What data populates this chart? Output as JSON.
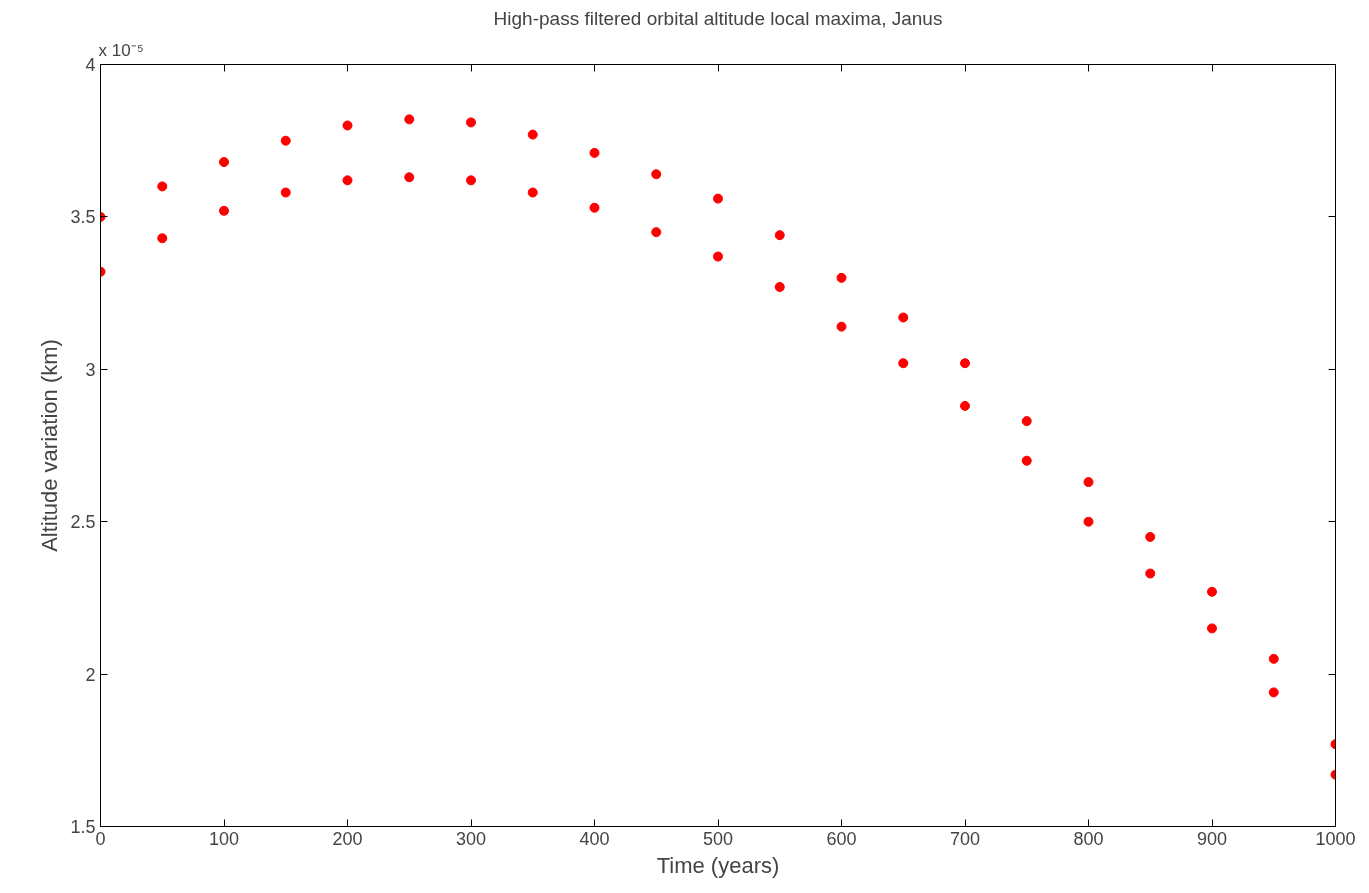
{
  "chart_data": {
    "type": "scatter",
    "title": "High-pass filtered orbital altitude local maxima, Janus",
    "xlabel": "Time (years)",
    "ylabel": "Altitude variation (km)",
    "annotations": [
      "x 10⁻⁵"
    ],
    "marker": "circle",
    "grid": false,
    "xlim": [
      0,
      1000
    ],
    "xticks": [
      0,
      100,
      200,
      300,
      400,
      500,
      600,
      700,
      800,
      900,
      1000
    ],
    "ylim": [
      1.5,
      4
    ],
    "yticks": [
      1.5,
      2,
      2.5,
      3,
      3.5,
      4
    ],
    "series": [
      {
        "color": "#ff0000",
        "x": [
          0,
          0,
          50,
          50,
          100,
          100,
          150,
          150,
          200,
          200,
          250,
          250,
          300,
          300,
          350,
          350,
          400,
          400,
          450,
          450,
          500,
          500,
          550,
          550,
          600,
          600,
          650,
          650,
          700,
          700,
          750,
          750,
          800,
          800,
          850,
          850,
          900,
          900,
          950,
          950,
          1000,
          1000
        ],
        "values": [
          3.5,
          3.32,
          3.6,
          3.43,
          3.68,
          3.52,
          3.75,
          3.58,
          3.8,
          3.62,
          3.82,
          3.63,
          3.81,
          3.62,
          3.77,
          3.58,
          3.71,
          3.53,
          3.64,
          3.45,
          3.56,
          3.37,
          3.44,
          3.27,
          3.3,
          3.14,
          3.17,
          3.02,
          3.02,
          2.88,
          2.83,
          2.7,
          2.63,
          2.5,
          2.45,
          2.33,
          2.27,
          2.15,
          2.05,
          1.94,
          1.77,
          1.67
        ]
      }
    ]
  }
}
